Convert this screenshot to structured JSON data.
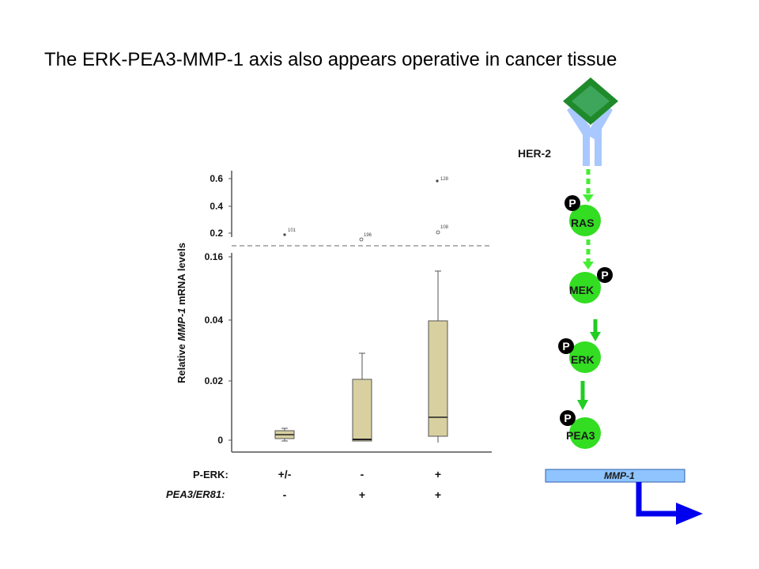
{
  "title": "The ERK-PEA3-MMP-1 axis also appears operative in cancer tissue",
  "chart_data": {
    "type": "box",
    "ylabel_parts": [
      "Relative ",
      "MMP-1",
      " mRNA levels"
    ],
    "ytick_labels_upper": [
      "0.6",
      "0.4",
      "0.2"
    ],
    "ytick_labels_lower": [
      "0.16",
      "0.04",
      "0.02",
      "0"
    ],
    "row_labels": [
      "P-ERK:",
      "PEA3/ER81:"
    ],
    "groups": [
      {
        "perk": "+/-",
        "pea3": "-",
        "min": 0.0,
        "q1": 0.0015,
        "median": 0.0045,
        "q3": 0.007,
        "max": 0.008,
        "outliers": [
          {
            "value": "0.18",
            "label": "101"
          }
        ]
      },
      {
        "perk": "-",
        "pea3": "+",
        "min": 0.0,
        "q1": 0.0002,
        "median": 0.0006,
        "q3": 0.021,
        "max": 0.029,
        "outliers": [
          {
            "value": "0.17",
            "label": "196"
          }
        ]
      },
      {
        "perk": "+",
        "pea3": "+",
        "min": 0.0,
        "q1": 0.003,
        "median": 0.012,
        "q3": 0.04,
        "max": 0.14,
        "outliers": [
          {
            "value": "0.21",
            "label": "108"
          },
          {
            "value": "0.59",
            "label": "128"
          }
        ]
      }
    ]
  },
  "pathway": {
    "receptor_label": "HER-2",
    "phospho_label": "P",
    "nodes": [
      "RAS",
      "MEK",
      "ERK",
      "PEA3"
    ],
    "gene_label": "MMP-1",
    "colors": {
      "node": "#33dd22",
      "arrow_dashed": "#44ee33",
      "arrow_solid": "#22cc22",
      "receptor": "#a8c8ff",
      "ligand_outer": "#1f8a2a",
      "ligand_inner": "#3da65a",
      "gene_box": "#8fc4ff",
      "promoter_arrow": "#0000ee"
    }
  }
}
